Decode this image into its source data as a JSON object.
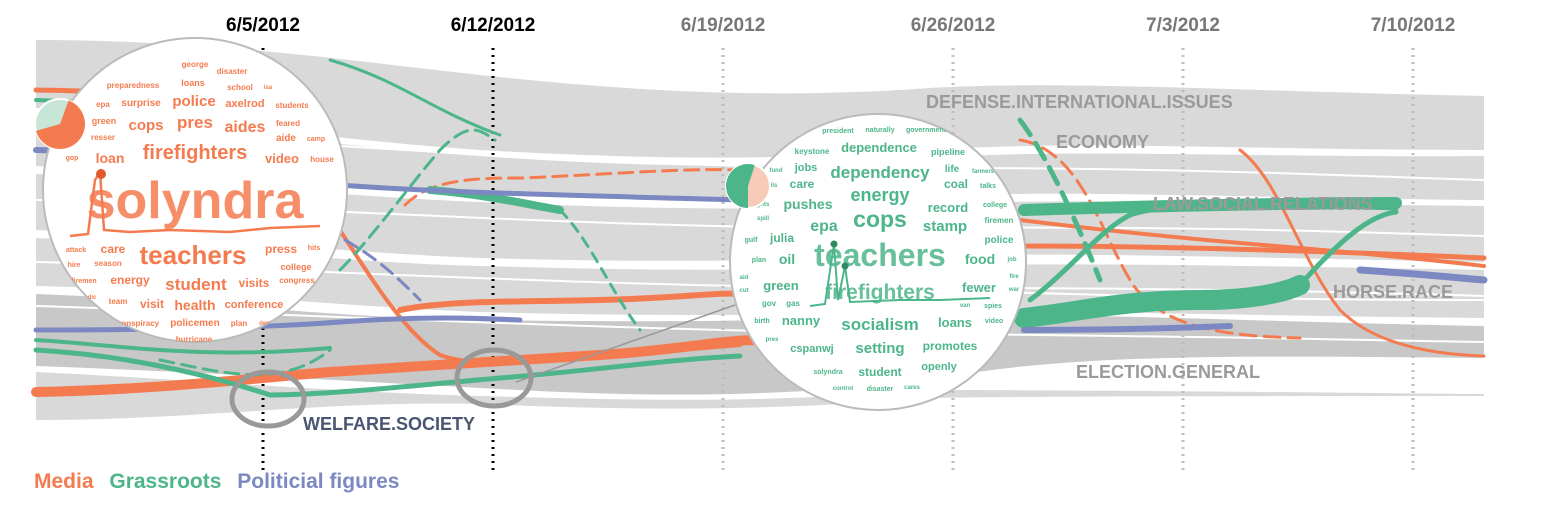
{
  "colors": {
    "media": "#f47b4f",
    "grassroots": "#4db58a",
    "political": "#7b88c2",
    "band": "#d9d9d9",
    "band_dark": "#c6c6c6",
    "topic_text": "#9a9a9a",
    "welfare_text": "#4a5572"
  },
  "chart_data": {
    "type": "area",
    "chart_style": "topic-competition streamgraph with word-cloud lenses",
    "x_axis": {
      "type": "date",
      "tick_labels": [
        "6/5/2012",
        "6/12/2012",
        "6/19/2012",
        "6/26/2012",
        "7/3/2012",
        "7/10/2012"
      ],
      "highlighted_ticks": [
        "6/5/2012",
        "6/12/2012"
      ]
    },
    "topics": [
      "DEFENSE.INTERNATIONAL.ISSUES",
      "ECONOMY",
      "LAW.SOCIAL.RELATIONS",
      "HORSE.RACE",
      "ELECTION.GENERAL",
      "WELFARE.SOCIETY"
    ],
    "series": [
      {
        "name": "Media"
      },
      {
        "name": "Grassroots"
      },
      {
        "name": "Politicial figures"
      }
    ],
    "lenses": [
      {
        "dominant_group": "Media",
        "pie": [
          0.65,
          0.35
        ],
        "words": [
          "george",
          "disaster",
          "preparedness",
          "loans",
          "epa",
          "surprise",
          "police",
          "axelrod",
          "school",
          "isa",
          "students",
          "green",
          "cops",
          "pres",
          "aides",
          "feared",
          "resser",
          "aide",
          "camp",
          "firefighters",
          "gop",
          "loan",
          "video",
          "house",
          "solyndra",
          "attack",
          "care",
          "teachers",
          "press",
          "hits",
          "hire",
          "season",
          "college",
          "firemen",
          "energy",
          "student",
          "visits",
          "congress",
          "dic",
          "team",
          "visit",
          "health",
          "conference",
          "conspiracy",
          "policemen",
          "plan",
          "dems",
          "hurricane"
        ]
      },
      {
        "dominant_group": "Grassroots",
        "pie": [
          0.55,
          0.45
        ],
        "words": [
          "president",
          "naturally",
          "government",
          "keystone",
          "dependence",
          "pipeline",
          "fund",
          "jobs",
          "life",
          "farmers",
          "ils",
          "care",
          "dependency",
          "coal",
          "talks",
          "rights",
          "pushes",
          "energy",
          "record",
          "college",
          "spill",
          "cops",
          "firemen",
          "epa",
          "stamp",
          "gulf",
          "julia",
          "police",
          "plan",
          "oil",
          "teachers",
          "food",
          "job",
          "aid",
          "fire",
          "green",
          "fewer",
          "war",
          "cut",
          "firefighters",
          "gov",
          "gas",
          "van",
          "spies",
          "birth",
          "nanny",
          "socialism",
          "loans",
          "video",
          "pres",
          "cspanwj",
          "setting",
          "promotes",
          "solyndra",
          "student",
          "openly",
          "control",
          "disaster",
          "cares"
        ]
      }
    ]
  },
  "labels": {
    "dates": [
      "6/5/2012",
      "6/12/2012",
      "6/19/2012",
      "6/26/2012",
      "7/3/2012",
      "7/10/2012"
    ],
    "topic_defense": "DEFENSE.INTERNATIONAL.ISSUES",
    "topic_economy": "ECONOMY",
    "topic_law": "LAW.SOCIAL.RELATIONS",
    "topic_horse": "HORSE.RACE",
    "topic_election": "ELECTION.GENERAL",
    "topic_welfare": "WELFARE.SOCIETY"
  },
  "legend": {
    "media": "Media",
    "grassroots": "Grassroots",
    "political": "Politicial figures"
  }
}
